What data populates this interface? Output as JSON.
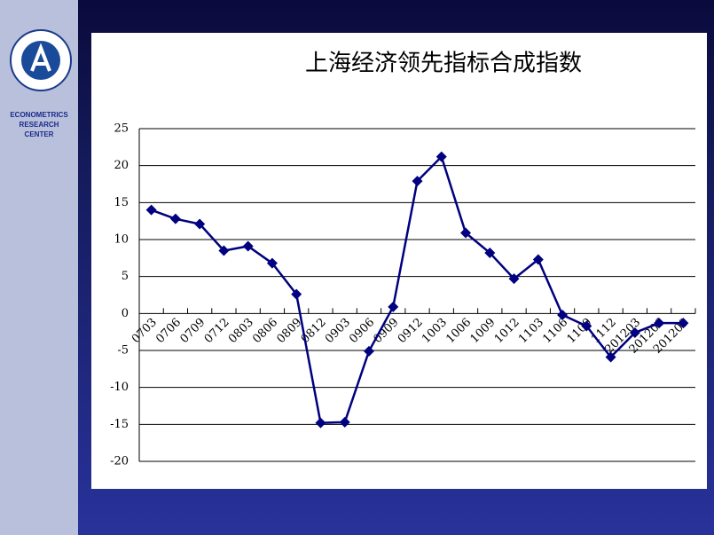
{
  "chart_data": {
    "type": "line",
    "title": "上海经济领先指标合成指数",
    "categories": [
      "0703",
      "0706",
      "0709",
      "0712",
      "0803",
      "0806",
      "0809",
      "0812",
      "0903",
      "0906",
      "0909",
      "0912",
      "1003",
      "1006",
      "1009",
      "1012",
      "1103",
      "1106",
      "1109",
      "1112",
      "201203",
      "201206",
      "201209"
    ],
    "series": [
      {
        "name": null,
        "color": "#000080",
        "values": [
          14,
          12.8,
          12.1,
          8.5,
          9.1,
          6.8,
          2.6,
          -14.8,
          -14.7,
          -5.1,
          0.9,
          17.9,
          21.2,
          10.9,
          8.2,
          4.7,
          7.3,
          -0.2,
          -1.7,
          -5.9,
          -2.6,
          -1.3,
          -1.3
        ]
      }
    ],
    "ylim": [
      -20,
      25
    ],
    "yticks": [
      -20,
      -15,
      -10,
      -5,
      0,
      5,
      10,
      15,
      20,
      25
    ],
    "grid": true
  },
  "sidebar": {
    "org_lines": [
      "ECONOMETRICS",
      "RESEARCH",
      "CENTER"
    ]
  }
}
